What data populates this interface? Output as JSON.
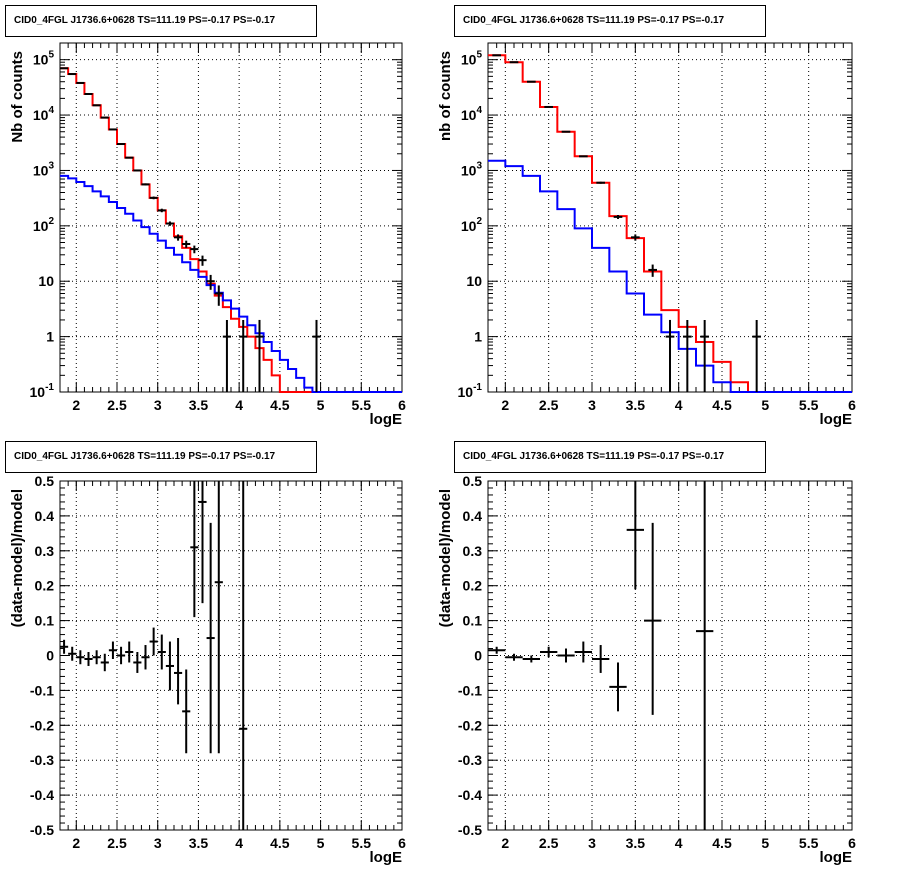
{
  "chart_data": [
    {
      "type": "line",
      "title": "CID0_4FGL J1736.6+0628 TS=111.19 PS=-0.17 PS=-0.17",
      "xlabel": "logE",
      "ylabel": "Nb of counts",
      "xlim": [
        1.8,
        6.0
      ],
      "ylim": [
        0.1,
        200000
      ],
      "yscale": "log",
      "grid": true,
      "xticks": [
        "2",
        "2.5",
        "3",
        "3.5",
        "4",
        "4.5",
        "5",
        "5.5",
        "6"
      ],
      "yticks": [
        "10^-1",
        "1",
        "10",
        "10^2",
        "10^3",
        "10^4",
        "10^5"
      ],
      "bin_edges": [
        1.8,
        1.9,
        2.0,
        2.1,
        2.2,
        2.3,
        2.4,
        2.5,
        2.6,
        2.7,
        2.8,
        2.9,
        3.0,
        3.1,
        3.2,
        3.3,
        3.4,
        3.5,
        3.6,
        3.7,
        3.8,
        3.9,
        4.0,
        4.1,
        4.2,
        4.3,
        4.4,
        4.5,
        4.6,
        4.7,
        4.8,
        4.9,
        5.0,
        5.1,
        5.2,
        5.3,
        5.4,
        5.5,
        5.6,
        5.7,
        5.8,
        5.9,
        6.0
      ],
      "series": [
        {
          "name": "",
          "color": "#ff0000",
          "style": "step",
          "values": [
            70000,
            55000,
            38000,
            24000,
            15000,
            9000,
            5500,
            3000,
            1700,
            1000,
            560,
            320,
            190,
            110,
            65,
            40,
            25,
            15,
            9,
            5.5,
            3.4,
            2.1,
            1.5,
            1.0,
            0.62,
            0.38,
            0.2,
            0.1,
            0.1,
            0.1,
            0.1,
            0.1,
            0.1,
            0.1,
            0.1,
            0.1,
            0.1,
            0.1,
            0.1,
            0.1,
            0.1,
            0.1
          ]
        },
        {
          "name": "",
          "color": "#0000ff",
          "style": "step",
          "values": [
            800,
            720,
            620,
            520,
            420,
            340,
            270,
            210,
            165,
            125,
            95,
            72,
            54,
            40,
            30,
            22,
            16,
            12,
            8.5,
            6.2,
            4.5,
            3.2,
            2.3,
            1.6,
            1.15,
            0.8,
            0.55,
            0.38,
            0.26,
            0.18,
            0.12,
            0.1,
            0.1,
            0.1,
            0.1,
            0.1,
            0.1,
            0.1,
            0.1,
            0.1,
            0.1,
            0.1
          ]
        },
        {
          "name": "",
          "color": "#000000",
          "style": "errorbar",
          "points": [
            {
              "x": 1.85,
              "y": 70000,
              "lo": 69700,
              "hi": 70300
            },
            {
              "x": 1.95,
              "y": 55000,
              "lo": 54700,
              "hi": 55300
            },
            {
              "x": 2.05,
              "y": 38000,
              "lo": 37800,
              "hi": 38200
            },
            {
              "x": 2.15,
              "y": 24000,
              "lo": 23800,
              "hi": 24200
            },
            {
              "x": 2.25,
              "y": 15000,
              "lo": 14870,
              "hi": 15130
            },
            {
              "x": 2.35,
              "y": 9000,
              "lo": 8900,
              "hi": 9100
            },
            {
              "x": 2.45,
              "y": 5500,
              "lo": 5420,
              "hi": 5580
            },
            {
              "x": 2.55,
              "y": 3000,
              "lo": 2945,
              "hi": 3055
            },
            {
              "x": 2.65,
              "y": 1700,
              "lo": 1660,
              "hi": 1740
            },
            {
              "x": 2.75,
              "y": 1000,
              "lo": 968,
              "hi": 1032
            },
            {
              "x": 2.85,
              "y": 560,
              "lo": 536,
              "hi": 584
            },
            {
              "x": 2.95,
              "y": 320,
              "lo": 302,
              "hi": 338
            },
            {
              "x": 3.05,
              "y": 190,
              "lo": 176,
              "hi": 204
            },
            {
              "x": 3.15,
              "y": 110,
              "lo": 100,
              "hi": 120
            },
            {
              "x": 3.25,
              "y": 62,
              "lo": 54,
              "hi": 70
            },
            {
              "x": 3.35,
              "y": 47,
              "lo": 40,
              "hi": 54
            },
            {
              "x": 3.45,
              "y": 38,
              "lo": 32,
              "hi": 44
            },
            {
              "x": 3.55,
              "y": 24,
              "lo": 19,
              "hi": 29
            },
            {
              "x": 3.65,
              "y": 10,
              "lo": 7,
              "hi": 13
            },
            {
              "x": 3.75,
              "y": 6,
              "lo": 3.6,
              "hi": 8.4
            },
            {
              "x": 3.85,
              "y": 1,
              "lo": 0.1,
              "hi": 2
            },
            {
              "x": 4.05,
              "y": 1,
              "lo": 0.1,
              "hi": 2
            },
            {
              "x": 4.25,
              "y": 1,
              "lo": 0.1,
              "hi": 2
            },
            {
              "x": 4.95,
              "y": 1,
              "lo": 0.1,
              "hi": 2
            }
          ]
        }
      ]
    },
    {
      "type": "line",
      "title": "CID0_4FGL J1736.6+0628 TS=111.19 PS=-0.17 PS=-0.17",
      "xlabel": "logE",
      "ylabel": "nb of counts",
      "xlim": [
        1.8,
        6.0
      ],
      "ylim": [
        0.1,
        200000
      ],
      "yscale": "log",
      "grid": true,
      "xticks": [
        "2",
        "2.5",
        "3",
        "3.5",
        "4",
        "4.5",
        "5",
        "5.5",
        "6"
      ],
      "yticks": [
        "10^-1",
        "1",
        "10",
        "10^2",
        "10^3",
        "10^4",
        "10^5"
      ],
      "bin_edges": [
        1.8,
        2.0,
        2.2,
        2.4,
        2.6,
        2.8,
        3.0,
        3.2,
        3.4,
        3.6,
        3.8,
        4.0,
        4.2,
        4.4,
        4.6,
        4.8,
        5.0,
        5.2,
        5.4,
        5.6,
        5.8,
        6.0
      ],
      "series": [
        {
          "name": "",
          "color": "#ff0000",
          "style": "step",
          "values": [
            120000,
            90000,
            40000,
            14000,
            5000,
            1800,
            600,
            150,
            60,
            15,
            3,
            1.5,
            0.8,
            0.35,
            0.15,
            0.1,
            0.1,
            0.1,
            0.1,
            0.1,
            0.1
          ]
        },
        {
          "name": "",
          "color": "#0000ff",
          "style": "step",
          "values": [
            1500,
            1200,
            800,
            420,
            200,
            90,
            40,
            15,
            6,
            2.5,
            1.2,
            0.6,
            0.3,
            0.15,
            0.1,
            0.1,
            0.1,
            0.1,
            0.1,
            0.1,
            0.1
          ]
        },
        {
          "name": "",
          "color": "#000000",
          "style": "errorbar",
          "points": [
            {
              "x": 1.9,
              "y": 120000,
              "lo": 119600,
              "hi": 120400
            },
            {
              "x": 2.1,
              "y": 90000,
              "lo": 89700,
              "hi": 90300
            },
            {
              "x": 2.3,
              "y": 40000,
              "lo": 39800,
              "hi": 40200
            },
            {
              "x": 2.5,
              "y": 14000,
              "lo": 13880,
              "hi": 14120
            },
            {
              "x": 2.7,
              "y": 5000,
              "lo": 4930,
              "hi": 5070
            },
            {
              "x": 2.9,
              "y": 1800,
              "lo": 1758,
              "hi": 1842
            },
            {
              "x": 3.1,
              "y": 600,
              "lo": 575,
              "hi": 625
            },
            {
              "x": 3.3,
              "y": 145,
              "lo": 133,
              "hi": 157
            },
            {
              "x": 3.5,
              "y": 62,
              "lo": 54,
              "hi": 70
            },
            {
              "x": 3.7,
              "y": 16,
              "lo": 12,
              "hi": 20
            },
            {
              "x": 3.9,
              "y": 1,
              "lo": 0.1,
              "hi": 2
            },
            {
              "x": 4.1,
              "y": 1,
              "lo": 0.1,
              "hi": 2
            },
            {
              "x": 4.3,
              "y": 1,
              "lo": 0.1,
              "hi": 2
            },
            {
              "x": 4.9,
              "y": 1,
              "lo": 0.1,
              "hi": 2
            }
          ]
        }
      ]
    },
    {
      "type": "scatter",
      "title": "CID0_4FGL J1736.6+0628 TS=111.19 PS=-0.17 PS=-0.17",
      "xlabel": "logE",
      "ylabel": "(data-model)/model",
      "xlim": [
        1.8,
        6.0
      ],
      "ylim": [
        -0.5,
        0.5
      ],
      "grid": true,
      "xticks": [
        "2",
        "2.5",
        "3",
        "3.5",
        "4",
        "4.5",
        "5",
        "5.5",
        "6"
      ],
      "yticks": [
        "-0.5",
        "-0.4",
        "-0.3",
        "-0.2",
        "-0.1",
        "0",
        "0.1",
        "0.2",
        "0.3",
        "0.4",
        "0.5"
      ],
      "series": [
        {
          "name": "",
          "color": "#000000",
          "style": "errorbar",
          "xerr": 0.05,
          "points": [
            {
              "x": 1.85,
              "y": 0.025,
              "lo": 0.005,
              "hi": 0.045
            },
            {
              "x": 1.95,
              "y": 0.005,
              "lo": -0.015,
              "hi": 0.025
            },
            {
              "x": 2.05,
              "y": -0.005,
              "lo": -0.025,
              "hi": 0.015
            },
            {
              "x": 2.15,
              "y": -0.01,
              "lo": -0.03,
              "hi": 0.01
            },
            {
              "x": 2.25,
              "y": -0.005,
              "lo": -0.025,
              "hi": 0.015
            },
            {
              "x": 2.35,
              "y": -0.02,
              "lo": -0.045,
              "hi": 0.005
            },
            {
              "x": 2.45,
              "y": 0.015,
              "lo": -0.01,
              "hi": 0.04
            },
            {
              "x": 2.55,
              "y": 0.0,
              "lo": -0.025,
              "hi": 0.025
            },
            {
              "x": 2.65,
              "y": 0.01,
              "lo": -0.02,
              "hi": 0.04
            },
            {
              "x": 2.75,
              "y": -0.02,
              "lo": -0.05,
              "hi": 0.01
            },
            {
              "x": 2.85,
              "y": -0.005,
              "lo": -0.04,
              "hi": 0.03
            },
            {
              "x": 2.95,
              "y": 0.04,
              "lo": 0.0,
              "hi": 0.08
            },
            {
              "x": 3.05,
              "y": 0.01,
              "lo": -0.04,
              "hi": 0.06
            },
            {
              "x": 3.15,
              "y": -0.03,
              "lo": -0.1,
              "hi": 0.04
            },
            {
              "x": 3.25,
              "y": -0.05,
              "lo": -0.14,
              "hi": 0.05
            },
            {
              "x": 3.35,
              "y": -0.16,
              "lo": -0.28,
              "hi": -0.04
            },
            {
              "x": 3.45,
              "y": 0.31,
              "lo": 0.11,
              "hi": 0.5
            },
            {
              "x": 3.55,
              "y": 0.44,
              "lo": 0.15,
              "hi": 0.5
            },
            {
              "x": 3.65,
              "y": 0.05,
              "lo": -0.28,
              "hi": 0.38
            },
            {
              "x": 3.75,
              "y": 0.21,
              "lo": -0.28,
              "hi": 0.5
            },
            {
              "x": 4.05,
              "y": -0.21,
              "lo": -0.5,
              "hi": 0.5
            }
          ]
        }
      ]
    },
    {
      "type": "scatter",
      "title": "CID0_4FGL J1736.6+0628 TS=111.19 PS=-0.17 PS=-0.17",
      "xlabel": "logE",
      "ylabel": "(data-model)/model",
      "xlim": [
        1.8,
        6.0
      ],
      "ylim": [
        -0.5,
        0.5
      ],
      "grid": true,
      "xticks": [
        "2",
        "2.5",
        "3",
        "3.5",
        "4",
        "4.5",
        "5",
        "5.5",
        "6"
      ],
      "yticks": [
        "-0.5",
        "-0.4",
        "-0.3",
        "-0.2",
        "-0.1",
        "0",
        "0.1",
        "0.2",
        "0.3",
        "0.4",
        "0.5"
      ],
      "series": [
        {
          "name": "",
          "color": "#000000",
          "style": "errorbar",
          "xerr": 0.1,
          "points": [
            {
              "x": 1.9,
              "y": 0.015,
              "lo": 0.005,
              "hi": 0.025
            },
            {
              "x": 2.1,
              "y": -0.005,
              "lo": -0.015,
              "hi": 0.005
            },
            {
              "x": 2.3,
              "y": -0.01,
              "lo": -0.02,
              "hi": 0.0
            },
            {
              "x": 2.5,
              "y": 0.01,
              "lo": -0.005,
              "hi": 0.025
            },
            {
              "x": 2.7,
              "y": 0.0,
              "lo": -0.02,
              "hi": 0.02
            },
            {
              "x": 2.9,
              "y": 0.01,
              "lo": -0.02,
              "hi": 0.04
            },
            {
              "x": 3.1,
              "y": -0.01,
              "lo": -0.05,
              "hi": 0.03
            },
            {
              "x": 3.3,
              "y": -0.09,
              "lo": -0.16,
              "hi": -0.02
            },
            {
              "x": 3.5,
              "y": 0.36,
              "lo": 0.19,
              "hi": 0.5
            },
            {
              "x": 3.7,
              "y": 0.1,
              "lo": -0.17,
              "hi": 0.38
            },
            {
              "x": 4.3,
              "y": 0.07,
              "lo": -0.5,
              "hi": 0.5
            }
          ]
        }
      ]
    }
  ]
}
